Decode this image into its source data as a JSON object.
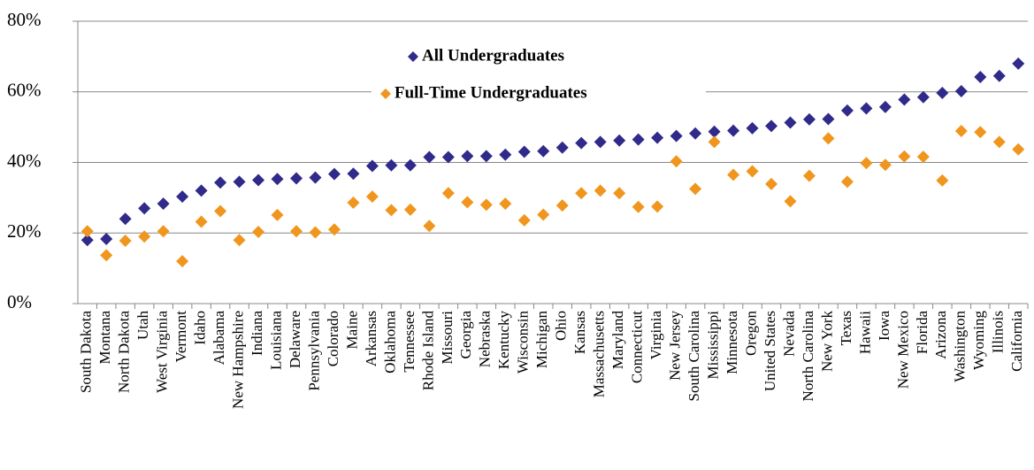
{
  "chart_data": {
    "type": "scatter",
    "categories": [
      "South Dakota",
      "Montana",
      "North Dakota",
      "Utah",
      "West Virginia",
      "Vermont",
      "Idaho",
      "Alabama",
      "New Hampshire",
      "Indiana",
      "Louisiana",
      "Delaware",
      "Pennsylvania",
      "Colorado",
      "Maine",
      "Arkansas",
      "Oklahoma",
      "Tennessee",
      "Rhode Island",
      "Missouri",
      "Georgia",
      "Nebraska",
      "Kentucky",
      "Wisconsin",
      "Michigan",
      "Ohio",
      "Kansas",
      "Massachusetts",
      "Maryland",
      "Connecticut",
      "Virginia",
      "New Jersey",
      "South Carolina",
      "Mississippi",
      "Minnesota",
      "Oregon",
      "United States",
      "Nevada",
      "North Carolina",
      "New York",
      "Texas",
      "Hawaii",
      "Iowa",
      "New Mexico",
      "Florida",
      "Arizona",
      "Washington",
      "Wyoming",
      "Illinois",
      "California"
    ],
    "series": [
      {
        "name": "All Undergraduates",
        "color": "#302a8a",
        "values": [
          18,
          18.3,
          24,
          27,
          28.3,
          30.3,
          32,
          34.3,
          34.5,
          35,
          35.3,
          35.5,
          35.7,
          36.7,
          36.8,
          39,
          39.2,
          39.2,
          41.5,
          41.5,
          41.8,
          41.8,
          42.2,
          43,
          43.2,
          44.2,
          45.5,
          45.8,
          46.2,
          46.5,
          47,
          47.5,
          48.2,
          48.7,
          49,
          49.7,
          50.3,
          51.3,
          52.2,
          52.3,
          54.7,
          55.3,
          55.7,
          57.8,
          58.5,
          59.7,
          60.2,
          64.2,
          64.5,
          68
        ]
      },
      {
        "name": "Full-Time Undergraduates",
        "color": "#f0961e",
        "values": [
          20.5,
          13.7,
          17.8,
          19,
          20.5,
          12,
          23.2,
          26.2,
          18,
          20.3,
          25.1,
          20.5,
          20.2,
          21,
          28.6,
          30.3,
          26.5,
          26.6,
          22,
          31.3,
          28.7,
          28,
          28.3,
          23.6,
          25.2,
          27.8,
          31.3,
          32,
          31.3,
          27.4,
          27.5,
          40.3,
          32.5,
          45.8,
          36.5,
          37.5,
          33.9,
          29,
          36.2,
          46.8,
          34.5,
          39.8,
          39.3,
          41.7,
          41.6,
          34.9,
          48.9,
          48.6,
          45.8,
          43.7
        ]
      }
    ],
    "ylim": [
      0,
      80
    ],
    "yticks": [
      {
        "value": 0,
        "label": "0%"
      },
      {
        "value": 20,
        "label": "20%"
      },
      {
        "value": 40,
        "label": "40%"
      },
      {
        "value": 60,
        "label": "60%"
      },
      {
        "value": 80,
        "label": "80%"
      }
    ],
    "grid": true
  }
}
